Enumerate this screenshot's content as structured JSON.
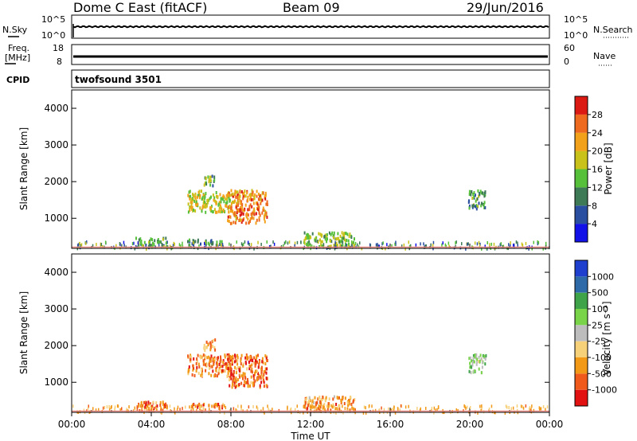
{
  "header": {
    "station": "Dome C East (fitACF)",
    "beam": "Beam 09",
    "date": "29/Jun/2016"
  },
  "panels": {
    "nsky": {
      "label": "N.Sky",
      "ticks": [
        "10^5",
        "10^0"
      ],
      "right_ticks": [
        "10^5",
        "10^0"
      ],
      "right_label": "N.Search",
      "level": 0.5
    },
    "freq": {
      "label_line1": "Freq.",
      "label_line2": "[MHz]",
      "ticks": [
        "18",
        "8"
      ],
      "right_ticks": [
        "60",
        "0"
      ],
      "right_label": "Nave",
      "band_level": [
        0.34,
        0.46
      ]
    },
    "cpid": {
      "label": "CPID",
      "value": "twofsound 3501"
    }
  },
  "time_axis": {
    "ticks": [
      "00:00",
      "04:00",
      "08:00",
      "12:00",
      "16:00",
      "20:00",
      "00:00"
    ],
    "label": "Time UT"
  },
  "colors": {
    "power_scale": [
      "#1212e8",
      "#2a4ea0",
      "#3f7a57",
      "#56c03a",
      "#c8c21a",
      "#f2a21a",
      "#ee6a1f",
      "#dc1a14"
    ],
    "velocity_scale": [
      "#e31212",
      "#f05a1a",
      "#f29a18",
      "#f7d07a",
      "#bdbdbd",
      "#79d44a",
      "#3fa34a",
      "#2f6aa8",
      "#1f3fcf"
    ],
    "ground_line": "#e98a84"
  },
  "chart_data": [
    {
      "type": "heatmap",
      "name": "power",
      "ylabel": "Slant Range [km]",
      "xlabel": "Time UT",
      "xlim_hours": [
        0,
        24
      ],
      "ylim": [
        180,
        4500
      ],
      "yticks": [
        1000,
        2000,
        3000,
        4000
      ],
      "colorbar": {
        "label": "Power [dB]",
        "ticks": [
          "4",
          "8",
          "12",
          "16",
          "20",
          "24",
          "28"
        ],
        "range": [
          0,
          30
        ]
      },
      "regions": [
        {
          "t": [
            5.8,
            8.0
          ],
          "r": [
            1200,
            1800
          ],
          "level": 0.55
        },
        {
          "t": [
            7.8,
            9.8
          ],
          "r": [
            900,
            1800
          ],
          "level": 0.75
        },
        {
          "t": [
            6.6,
            7.2
          ],
          "r": [
            1900,
            2200
          ],
          "level": 0.4
        },
        {
          "t": [
            3.2,
            4.8
          ],
          "r": [
            250,
            500
          ],
          "level": 0.35
        },
        {
          "t": [
            5.8,
            7.6
          ],
          "r": [
            300,
            450
          ],
          "level": 0.3
        },
        {
          "t": [
            11.6,
            14.2
          ],
          "r": [
            250,
            650
          ],
          "level": 0.45
        },
        {
          "t": [
            19.9,
            20.8
          ],
          "r": [
            1300,
            1800
          ],
          "level": 0.35
        }
      ]
    },
    {
      "type": "heatmap",
      "name": "velocity",
      "ylabel": "Slant Range [km]",
      "xlabel": "Time UT",
      "xlim_hours": [
        0,
        24
      ],
      "ylim": [
        180,
        4500
      ],
      "yticks": [
        1000,
        2000,
        3000,
        4000
      ],
      "colorbar": {
        "label": "Velocity [m s⁻¹]",
        "ticks": [
          "-1000",
          "-500",
          "-100",
          "-25",
          "25",
          "100",
          "500",
          "1000"
        ]
      },
      "regions": [
        {
          "t": [
            5.8,
            8.0
          ],
          "r": [
            1200,
            1800
          ],
          "level": 0.22
        },
        {
          "t": [
            7.8,
            9.8
          ],
          "r": [
            900,
            1800
          ],
          "level": 0.18
        },
        {
          "t": [
            6.6,
            7.2
          ],
          "r": [
            1900,
            2200
          ],
          "level": 0.25
        },
        {
          "t": [
            3.2,
            4.8
          ],
          "r": [
            250,
            500
          ],
          "level": 0.22
        },
        {
          "t": [
            5.8,
            7.6
          ],
          "r": [
            300,
            450
          ],
          "level": 0.2
        },
        {
          "t": [
            11.6,
            14.2
          ],
          "r": [
            250,
            650
          ],
          "level": 0.28
        },
        {
          "t": [
            19.9,
            20.8
          ],
          "r": [
            1300,
            1800
          ],
          "level": 0.6
        }
      ]
    }
  ]
}
